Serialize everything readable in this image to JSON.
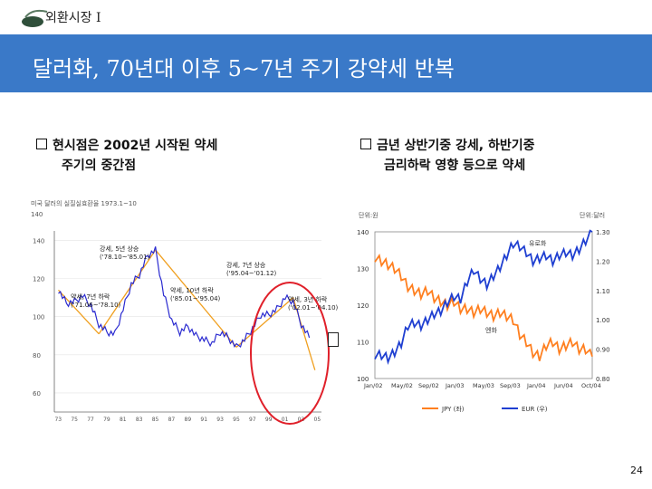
{
  "header": {
    "section_label": "외환시장 I"
  },
  "title": "달러화, 70년대 이후 5~7년 주기 강약세 반복",
  "bullets": {
    "left": {
      "line1": "현시점은 2002년 시작된 약세",
      "line2": "주기의 중간점"
    },
    "right": {
      "line1": "금년 상반기중 강세, 하반기중",
      "line2": "금리하락 영향 등으로 약세"
    }
  },
  "page_number": "24",
  "colors": {
    "title_band": "#3a79c8",
    "jpy": "#ff7f1f",
    "eur": "#1f3fd1",
    "dollar_index": "#2a2ad0",
    "trend": "#f0a020",
    "highlight_circle": "#e0202a"
  },
  "chart_data": [
    {
      "type": "line",
      "title": "미국 달러의 실질실효환율 1973.1~10",
      "ytick_top": "140",
      "yticks": [
        60,
        80,
        100,
        120,
        140
      ],
      "xticks": [
        "73",
        "75",
        "77",
        "79",
        "81",
        "83",
        "85",
        "87",
        "89",
        "91",
        "93",
        "95",
        "97",
        "99",
        "01",
        "03",
        "05"
      ],
      "x": [
        1973,
        1974,
        1975,
        1976,
        1977,
        1978,
        1979,
        1980,
        1981,
        1982,
        1983,
        1984,
        1985,
        1986,
        1987,
        1988,
        1989,
        1990,
        1991,
        1992,
        1993,
        1994,
        1995,
        1996,
        1997,
        1998,
        1999,
        2000,
        2001,
        2002,
        2003,
        2004
      ],
      "series": [
        {
          "values": [
            114,
            107,
            108,
            111,
            106,
            96,
            92,
            91,
            104,
            117,
            122,
            132,
            135,
            112,
            98,
            92,
            95,
            90,
            88,
            86,
            92,
            89,
            84,
            88,
            94,
            101,
            101,
            104,
            110,
            108,
            96,
            89
          ]
        }
      ],
      "trend_lines": [
        {
          "points": [
            [
              1973,
              114
            ],
            [
              1978,
              91
            ]
          ]
        },
        {
          "points": [
            [
              1978,
              91
            ],
            [
              1985,
              135
            ]
          ]
        },
        {
          "points": [
            [
              1985,
              135
            ],
            [
              1995,
              84
            ]
          ]
        },
        {
          "points": [
            [
              1995,
              84
            ],
            [
              2002,
              110
            ]
          ]
        },
        {
          "points": [
            [
              2002,
              110
            ],
            [
              2004.7,
              72
            ]
          ]
        }
      ],
      "annotations": [
        {
          "line1": "강세, 5년 상승",
          "line2": "('78.10~'85.01)"
        },
        {
          "line1": "강세, 7년 상승",
          "line2": "('95.04~'01.12)"
        },
        {
          "line1": "약세, 7년 하락",
          "line2": "('71.06~'78.10)"
        },
        {
          "line1": "약세, 10년 하락",
          "line2": "('85.01~'95.04)"
        },
        {
          "line1": "약세, 3년 하락",
          "line2": "('02.01~'04.10)"
        }
      ]
    },
    {
      "type": "line",
      "ylabel_left": "단위:원",
      "ylabel_right": "단위:달러",
      "yticks_left": [
        100,
        110,
        120,
        130,
        140
      ],
      "yticks_right": [
        "0.80",
        "0.90",
        "1.00",
        "1.10",
        "1.20",
        "1.30"
      ],
      "ylim_left": [
        100,
        140
      ],
      "ylim_right": [
        0.8,
        1.3
      ],
      "xticks": [
        "Jan/02",
        "May/02",
        "Sep/02",
        "Jan/03",
        "May/03",
        "Sep/03",
        "Jan/04",
        "Jun/04",
        "Oct/04"
      ],
      "x": [
        0,
        1,
        2,
        3,
        4,
        5,
        6,
        7,
        8,
        9,
        10,
        11,
        12,
        13,
        14,
        15,
        16,
        17,
        18,
        19,
        20,
        21,
        22,
        23,
        24,
        25,
        26,
        27,
        28,
        29,
        30,
        31,
        32,
        33
      ],
      "series": [
        {
          "name": "JPY (좌)",
          "axis": "left",
          "values": [
            133,
            132,
            131,
            130,
            128,
            125,
            124,
            123,
            124,
            122,
            121,
            120,
            121,
            119,
            119,
            118,
            119,
            118,
            117,
            118,
            117,
            116,
            112,
            110,
            107,
            106,
            109,
            110,
            108,
            109,
            110,
            108,
            108,
            106
          ]
        },
        {
          "name": "EUR (우)",
          "axis": "right",
          "values": [
            0.88,
            0.88,
            0.87,
            0.89,
            0.92,
            0.98,
            0.99,
            0.98,
            1.0,
            1.02,
            1.03,
            1.06,
            1.08,
            1.07,
            1.13,
            1.17,
            1.14,
            1.12,
            1.15,
            1.18,
            1.22,
            1.26,
            1.25,
            1.23,
            1.2,
            1.21,
            1.22,
            1.2,
            1.22,
            1.23,
            1.22,
            1.24,
            1.27,
            1.3
          ]
        }
      ],
      "series_labels": {
        "jpy": "엔화",
        "eur": "유로화"
      }
    }
  ]
}
